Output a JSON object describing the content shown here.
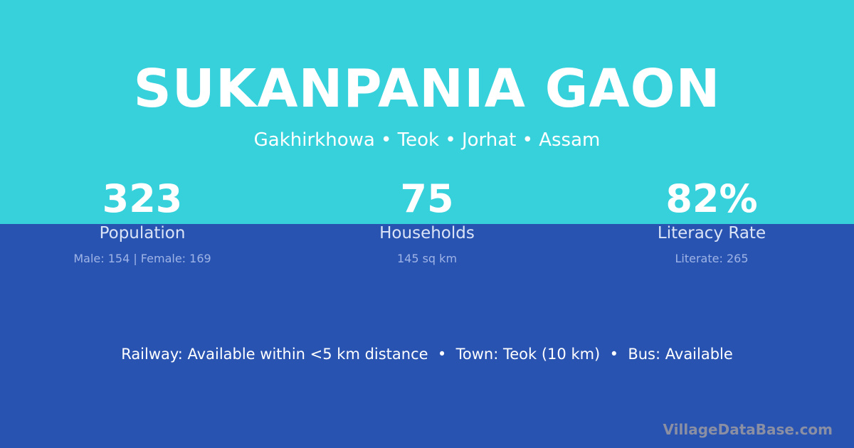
{
  "title": "SUKANPANIA GAON",
  "subtitle": "Gakhirkhowa • Teok • Jorhat • Assam",
  "stats": [
    {
      "value": "323",
      "label": "Population",
      "detail": "Male: 154 | Female: 169"
    },
    {
      "value": "75",
      "label": "Households",
      "detail": "145 sq km"
    },
    {
      "value": "82%",
      "label": "Literacy Rate",
      "detail": "Literate: 265"
    }
  ],
  "info": "Railway: Available within <5 km distance  •  Town: Teok (10 km)  •  Bus: Available",
  "logo": "VillageDataBase.com",
  "colors": {
    "top": "#37d1dc",
    "bottom": "#2953b1"
  }
}
